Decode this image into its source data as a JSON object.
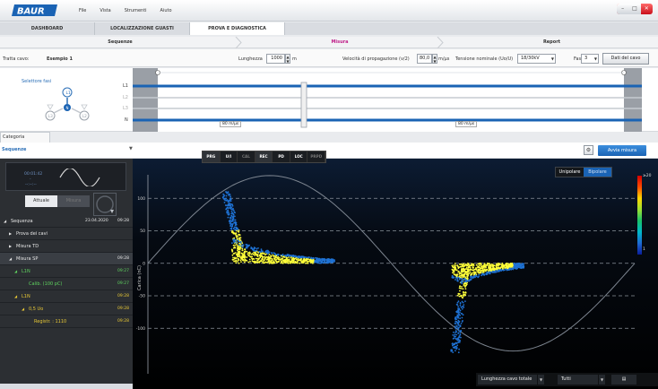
{
  "app": {
    "menu": [
      "File",
      "Vista",
      "Strumenti",
      "Aiuto"
    ],
    "window_controls": [
      "–",
      "□",
      "✕"
    ]
  },
  "main_tabs": [
    {
      "label": "DASHBOARD",
      "active": false
    },
    {
      "label": "LOCALIZZAZIONE GUASTI",
      "active": false
    },
    {
      "label": "PROVA E DIAGNOSTICA",
      "active": true
    }
  ],
  "steps": [
    {
      "label": "Sequenze",
      "active": false
    },
    {
      "label": "Misura",
      "active": true
    },
    {
      "label": "Report",
      "active": false
    }
  ],
  "params": {
    "tratta_label": "Tratta cavo:",
    "tratta_value": "Esempio 1",
    "lunghezza_label": "Lunghezza",
    "lunghezza_value": "1000",
    "lunghezza_unit": "m",
    "velocita_label": "Velocità di propagazione (v/2)",
    "velocita_value": "80,0",
    "velocita_unit": "m/µs",
    "tensione_label": "Tensione nominale (Uo/U)",
    "tensione_value": "18/30kV",
    "fasi_label": "Fasi",
    "fasi_value": "3",
    "dati_button": "Dati del cavo"
  },
  "phase_selector": {
    "title": "Selettore fasi",
    "phases": [
      "L1",
      "L2",
      "L3",
      "N"
    ],
    "line_speed_labels": [
      "80 m/µs",
      "80 m/µs"
    ]
  },
  "category": {
    "tab_label": "Categoria",
    "sequence_label": "Sequenze",
    "start_button": "Avvia misura"
  },
  "left_panel": {
    "preview_time": "00:01:42",
    "preview_dash": "-",
    "preview_dash2": "--:--:--",
    "btn_current": "Attuale",
    "btn_other": "Misura",
    "tree": [
      {
        "label": "Sequenza",
        "date": "23.04.2020",
        "time": "09:28",
        "level": 0,
        "style": "normal",
        "arrow": "◢"
      },
      {
        "label": "Prova dei cavi",
        "date": "",
        "time": "",
        "level": 1,
        "style": "normal",
        "arrow": "▶"
      },
      {
        "label": "Misura TD",
        "date": "",
        "time": "",
        "level": 1,
        "style": "normal",
        "arrow": "▶"
      },
      {
        "label": "Misura SP",
        "date": "",
        "time": "09:28",
        "level": 1,
        "style": "sel",
        "arrow": "◢"
      },
      {
        "label": "L1N",
        "date": "",
        "time": "09:27",
        "level": 2,
        "style": "green",
        "arrow": "◢"
      },
      {
        "label": "Calib. (100 pC)",
        "date": "",
        "time": "09:27",
        "level": 3,
        "style": "green",
        "arrow": ""
      },
      {
        "label": "L1N",
        "date": "",
        "time": "09:28",
        "level": 2,
        "style": "yellow",
        "arrow": "◢"
      },
      {
        "label": "0,5 Uo",
        "date": "",
        "time": "09:28",
        "level": 3,
        "style": "yellow",
        "arrow": "◢"
      },
      {
        "label": "Registr. : 1110",
        "date": "",
        "time": "09:28",
        "level": 4,
        "style": "yellow",
        "arrow": ""
      }
    ]
  },
  "mode_buttons": [
    {
      "label": "PRG",
      "state": "active"
    },
    {
      "label": "U/I",
      "state": "normal"
    },
    {
      "label": "CAL",
      "state": "dim"
    },
    {
      "label": "REC",
      "state": "active"
    },
    {
      "label": "PD",
      "state": "normal"
    },
    {
      "label": "LOC",
      "state": "normal"
    },
    {
      "label": "PRPD",
      "state": "dim"
    }
  ],
  "polarity": [
    {
      "label": "Unipolare",
      "active": false
    },
    {
      "label": "Bipolare",
      "active": true
    }
  ],
  "bottom_bar": {
    "length_select": "Lunghezza cavo totale",
    "filter_select": "Tutti"
  },
  "colors": {
    "accent_blue": "#1a63b4",
    "active_step": "#c0218a",
    "cluster_core": "#ffff3a",
    "cluster_edge": "#1f72d4"
  },
  "chart_data": {
    "type": "scatter",
    "ylabel": "Carica (nC)",
    "yticks": [
      100,
      50,
      0,
      -50,
      -100
    ],
    "ylim": [
      -170,
      150
    ],
    "xlim": [
      0,
      360
    ],
    "x_tick_labels_shown": false,
    "grid": "dashed horizontal",
    "reference_wave": {
      "type": "sine",
      "amplitude": 135
    },
    "colorbar": {
      "min_label": "1",
      "max_label": "≥20"
    },
    "clusters": [
      {
        "phase_deg": [
          54,
          100
        ],
        "charge": [
          -5,
          110
        ],
        "shape": "positive-spike-with-tail",
        "peak_charge": 110,
        "tail_end_phase": 138
      },
      {
        "phase_deg": [
          223,
          262
        ],
        "charge": [
          -140,
          0
        ],
        "shape": "negative-spike-with-head",
        "peak_charge": -140,
        "head_end_phase": 278
      }
    ],
    "colorbar_stops": [
      "#d40000",
      "#ff4b00",
      "#ffd600",
      "#9de032",
      "#19c26a",
      "#00b8c9",
      "#1e69d2",
      "#0a1e9c"
    ]
  }
}
